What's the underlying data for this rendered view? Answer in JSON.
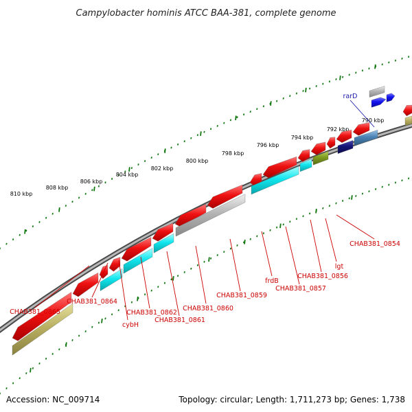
{
  "title": "Campylobacter hominis ATCC BAA-381, complete genome",
  "ticks": [
    {
      "label": "810 kbp"
    },
    {
      "label": "808 kbp"
    },
    {
      "label": "806 kbp"
    },
    {
      "label": "804 kbp"
    },
    {
      "label": "802 kbp"
    },
    {
      "label": "800 kbp"
    },
    {
      "label": "798 kbp"
    },
    {
      "label": "796 kbp"
    },
    {
      "label": "794 kbp"
    },
    {
      "label": "792 kbp"
    },
    {
      "label": "790 kbp"
    }
  ],
  "labels": [
    {
      "text": "rarD",
      "color": "#1a1aaa"
    },
    {
      "text": "CHAB381_0854",
      "color": "#cc0000"
    },
    {
      "text": "lgt",
      "color": "#cc0000"
    },
    {
      "text": "CHAB381_0856",
      "color": "#cc0000"
    },
    {
      "text": "frdB",
      "color": "#cc0000"
    },
    {
      "text": "CHAB381_0857",
      "color": "#cc0000"
    },
    {
      "text": "CHAB381_0859",
      "color": "#cc0000"
    },
    {
      "text": "CHAB381_0860",
      "color": "#cc0000"
    },
    {
      "text": "CHAB381_0861",
      "color": "#cc0000"
    },
    {
      "text": "CHAB381_0862",
      "color": "#cc0000"
    },
    {
      "text": "cybH",
      "color": "#cc0000"
    },
    {
      "text": "CHAB381_0864",
      "color": "#cc0000"
    },
    {
      "text": "CHAB381_0865",
      "color": "#cc0000"
    }
  ],
  "colors": {
    "red": "#ee1111",
    "cyan": "#11e6ee",
    "grey": "#b4b4b4",
    "khaki": "#b9b062",
    "olive": "#7e9c1f",
    "navy": "#141478",
    "steelblue": "#4a82b4",
    "blue": "#1212ee",
    "tick_green": "#117711"
  },
  "footer": {
    "accession": "Accession: NC_009714",
    "summary": "Topology: circular; Length: 1,711,273 bp; Genes: 1,738"
  }
}
